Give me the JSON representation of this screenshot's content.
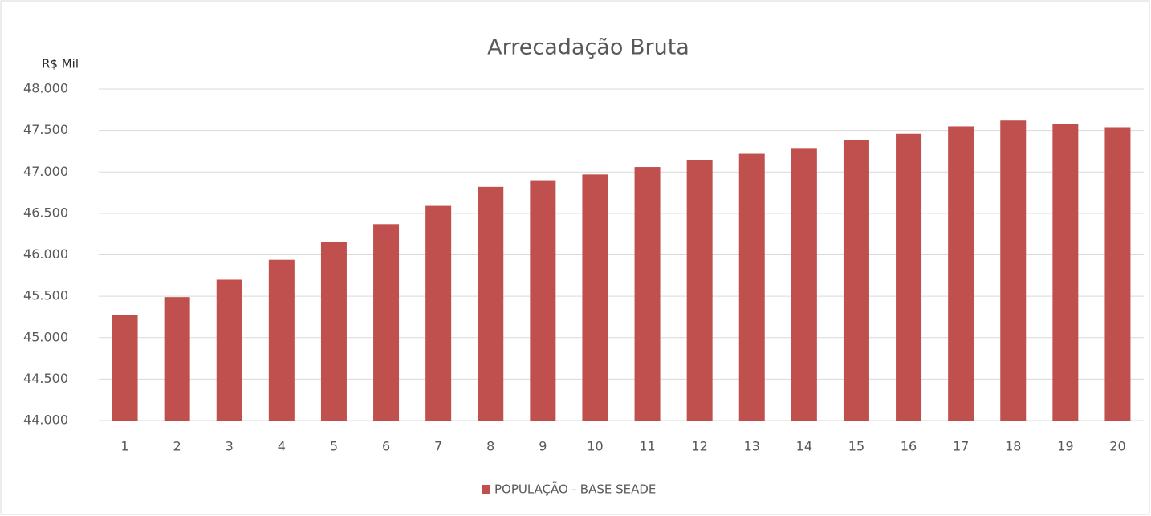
{
  "chart_data": {
    "type": "bar",
    "title": "Arrecadação Bruta",
    "y_label": "R$ Mil",
    "categories": [
      "1",
      "2",
      "3",
      "4",
      "5",
      "6",
      "7",
      "8",
      "9",
      "10",
      "11",
      "12",
      "13",
      "14",
      "15",
      "16",
      "17",
      "18",
      "19",
      "20"
    ],
    "series": [
      {
        "name": "POPULAÇÃO - BASE SEADE",
        "color": "#c0504d",
        "values": [
          45270,
          45490,
          45700,
          45940,
          46160,
          46370,
          46590,
          46820,
          46900,
          46970,
          47060,
          47140,
          47220,
          47280,
          47390,
          47460,
          47550,
          47620,
          47580,
          47540
        ]
      }
    ],
    "ylim": [
      44000,
      48000
    ],
    "yticks": [
      {
        "value": 44000,
        "label": "44.000"
      },
      {
        "value": 44500,
        "label": "44.500"
      },
      {
        "value": 45000,
        "label": "45.000"
      },
      {
        "value": 45500,
        "label": "45.500"
      },
      {
        "value": 46000,
        "label": "46.000"
      },
      {
        "value": 46500,
        "label": "46.500"
      },
      {
        "value": 47000,
        "label": "47.000"
      },
      {
        "value": 47500,
        "label": "47.500"
      },
      {
        "value": 48000,
        "label": "48.000"
      }
    ],
    "grid": true,
    "legend": "bottom"
  }
}
